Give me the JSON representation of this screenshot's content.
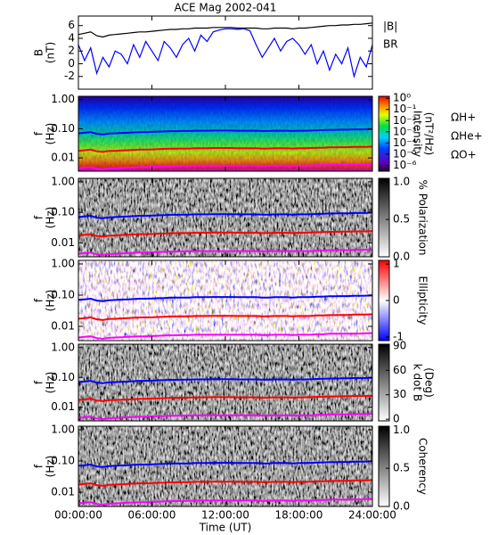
{
  "chart_data": [
    {
      "type": "line",
      "title": "ACE Mag 2002-041",
      "ylabel": [
        "B",
        "(nT)"
      ],
      "x": [
        0,
        0.5,
        1,
        1.5,
        2,
        2.5,
        3,
        3.5,
        4,
        4.5,
        5,
        5.5,
        6,
        6.5,
        7,
        7.5,
        8,
        8.5,
        9,
        9.5,
        10,
        10.5,
        11,
        11.5,
        12,
        12.5,
        13,
        13.5,
        14,
        14.5,
        15,
        15.5,
        16,
        16.5,
        17,
        17.5,
        18,
        18.5,
        19,
        19.5,
        20,
        20.5,
        21,
        21.5,
        22,
        22.5,
        23,
        23.5,
        24
      ],
      "ylim": [
        -4,
        7.5
      ],
      "yticks": [
        -2,
        0,
        2,
        4,
        6
      ],
      "series": [
        {
          "name": "|B|",
          "color": "#000000",
          "values": [
            4.6,
            4.8,
            5.0,
            4.4,
            4.2,
            4.5,
            4.6,
            4.7,
            4.8,
            4.9,
            5.0,
            5.0,
            5.1,
            5.2,
            5.3,
            5.4,
            5.4,
            5.5,
            5.5,
            5.6,
            5.6,
            5.6,
            5.7,
            5.7,
            5.7,
            5.7,
            5.6,
            5.6,
            5.6,
            5.6,
            5.5,
            5.5,
            5.6,
            5.6,
            5.6,
            5.5,
            5.6,
            5.6,
            5.7,
            5.8,
            5.9,
            6.0,
            6.0,
            6.1,
            6.1,
            6.2,
            6.2,
            6.3,
            6.4
          ]
        },
        {
          "name": "BR",
          "color": "#0000ff",
          "values": [
            3.0,
            0.5,
            2.5,
            -1.5,
            1.0,
            -0.5,
            2.0,
            1.5,
            0.0,
            3.0,
            1.0,
            3.5,
            2.0,
            0.5,
            3.5,
            2.5,
            1.0,
            3.0,
            4.0,
            2.0,
            4.5,
            3.5,
            5.0,
            5.3,
            5.5,
            5.5,
            5.4,
            5.5,
            5.2,
            3.0,
            1.0,
            2.5,
            4.0,
            2.0,
            3.5,
            4.0,
            3.0,
            1.5,
            3.0,
            0.0,
            2.0,
            -1.0,
            1.5,
            0.0,
            2.5,
            -2.0,
            1.0,
            -0.5,
            3.0
          ]
        }
      ]
    },
    {
      "type": "spectrogram",
      "ylabel": [
        "f",
        "(Hz)"
      ],
      "log_y": true,
      "ylim": [
        0.0035,
        1.3
      ],
      "yticks": [
        0.01,
        {
          "value": 0.1,
          "label": "0.10"
        },
        {
          "value": 1,
          "label": "1.00"
        }
      ],
      "colorbar": {
        "label": [
          "Intensity",
          "(nT²/Hz)"
        ],
        "colormap": "rainbow",
        "log": true,
        "lim": [
          3e-07,
          1.5
        ],
        "ticks": [
          {
            "value": 1,
            "label": "10⁰"
          },
          {
            "value": 0.1,
            "label": "10⁻¹"
          },
          {
            "value": 0.01,
            "label": "10⁻²"
          },
          {
            "value": 0.001,
            "label": "10⁻³"
          },
          {
            "value": 0.0001,
            "label": "10⁻⁴"
          },
          {
            "value": 1e-05,
            "label": "10⁻⁵"
          },
          {
            "value": 1e-06,
            "label": "10⁻⁶"
          }
        ]
      },
      "x": [
        0,
        0.5,
        1,
        1.5,
        2,
        2.5,
        3,
        3.5,
        4,
        4.5,
        5,
        5.5,
        6,
        6.5,
        7,
        7.5,
        8,
        8.5,
        9,
        9.5,
        10,
        10.5,
        11,
        11.5,
        12,
        12.5,
        13,
        13.5,
        14,
        14.5,
        15,
        15.5,
        16,
        16.5,
        17,
        17.5,
        18,
        18.5,
        19,
        19.5,
        20,
        20.5,
        21,
        21.5,
        22,
        22.5,
        23,
        23.5,
        24
      ],
      "series": [
        {
          "name": "ΩH+",
          "color": "#0000ff",
          "values": [
            0.07,
            0.073,
            0.077,
            0.067,
            0.064,
            0.069,
            0.07,
            0.072,
            0.073,
            0.075,
            0.077,
            0.077,
            0.078,
            0.08,
            0.081,
            0.083,
            0.083,
            0.084,
            0.084,
            0.086,
            0.086,
            0.086,
            0.087,
            0.087,
            0.087,
            0.087,
            0.086,
            0.086,
            0.086,
            0.086,
            0.084,
            0.084,
            0.086,
            0.086,
            0.086,
            0.084,
            0.086,
            0.086,
            0.087,
            0.089,
            0.09,
            0.092,
            0.092,
            0.093,
            0.093,
            0.095,
            0.095,
            0.096,
            0.098
          ]
        },
        {
          "name": "ΩHe+",
          "color": "#ff0000",
          "values": [
            0.0175,
            0.0183,
            0.0193,
            0.0168,
            0.016,
            0.0173,
            0.0175,
            0.018,
            0.0183,
            0.0188,
            0.0193,
            0.0193,
            0.0195,
            0.02,
            0.0203,
            0.0208,
            0.0208,
            0.021,
            0.021,
            0.0215,
            0.0215,
            0.0215,
            0.0218,
            0.0218,
            0.0218,
            0.0218,
            0.0215,
            0.0215,
            0.0215,
            0.0215,
            0.021,
            0.021,
            0.0215,
            0.0215,
            0.0215,
            0.021,
            0.0215,
            0.0215,
            0.0218,
            0.0223,
            0.0225,
            0.023,
            0.023,
            0.0233,
            0.0233,
            0.0238,
            0.0238,
            0.024,
            0.0245
          ]
        },
        {
          "name": "ΩO+",
          "color": "#ff00ff",
          "values": [
            0.0044,
            0.0046,
            0.0048,
            0.0042,
            0.004,
            0.0043,
            0.0044,
            0.0045,
            0.0046,
            0.0047,
            0.0048,
            0.0048,
            0.0049,
            0.005,
            0.0051,
            0.0052,
            0.0052,
            0.0053,
            0.0053,
            0.0054,
            0.0054,
            0.0054,
            0.0054,
            0.0054,
            0.0054,
            0.0054,
            0.0054,
            0.0054,
            0.0054,
            0.0054,
            0.0053,
            0.0053,
            0.0054,
            0.0054,
            0.0054,
            0.0053,
            0.0054,
            0.0054,
            0.0054,
            0.0056,
            0.0056,
            0.0058,
            0.0058,
            0.0058,
            0.0058,
            0.0059,
            0.0059,
            0.006,
            0.0061
          ]
        }
      ]
    },
    {
      "type": "spectrogram",
      "ylabel": [
        "f",
        "(Hz)"
      ],
      "log_y": true,
      "ylim": [
        0.0035,
        1.3
      ],
      "yticks": [
        0.01,
        {
          "value": 0.1,
          "label": "0.10"
        },
        {
          "value": 1,
          "label": "1.00"
        }
      ],
      "colorbar": {
        "label": [
          "% Polarization"
        ],
        "colormap": "gray",
        "lim": [
          0,
          1.05
        ],
        "ticks": [
          {
            "value": 0,
            "label": "0.0"
          },
          {
            "value": 0.5,
            "label": "0.5"
          },
          {
            "value": 1,
            "label": "1.0"
          }
        ]
      }
    },
    {
      "type": "spectrogram",
      "ylabel": [
        "f",
        "(Hz)"
      ],
      "log_y": true,
      "ylim": [
        0.0035,
        1.3
      ],
      "yticks": [
        0.01,
        {
          "value": 0.1,
          "label": "0.10"
        },
        {
          "value": 1,
          "label": "1.00"
        }
      ],
      "colorbar": {
        "label": [
          "Ellipticity"
        ],
        "colormap": "bwr",
        "lim": [
          -1.1,
          1.1
        ],
        "ticks": [
          -1,
          0,
          1
        ]
      }
    },
    {
      "type": "spectrogram",
      "ylabel": [
        "f",
        "(Hz)"
      ],
      "log_y": true,
      "ylim": [
        0.0035,
        1.3
      ],
      "yticks": [
        0.01,
        {
          "value": 0.1,
          "label": "0.10"
        },
        {
          "value": 1,
          "label": "1.00"
        }
      ],
      "colorbar": {
        "label": [
          "k dot B",
          "(Deg)"
        ],
        "colormap": "gray",
        "lim": [
          -2,
          92
        ],
        "ticks": [
          0,
          30,
          60,
          90
        ]
      }
    },
    {
      "type": "spectrogram",
      "ylabel": [
        "f",
        "(Hz)"
      ],
      "log_y": true,
      "ylim": [
        0.0035,
        1.3
      ],
      "yticks": [
        0.01,
        {
          "value": 0.1,
          "label": "0.10"
        },
        {
          "value": 1,
          "label": "1.00"
        }
      ],
      "colorbar": {
        "label": [
          "Coherency"
        ],
        "colormap": "gray",
        "lim": [
          0,
          1.05
        ],
        "ticks": [
          {
            "value": 0,
            "label": "0.0"
          },
          {
            "value": 0.5,
            "label": "0.5"
          },
          {
            "value": 1,
            "label": "1.0"
          }
        ]
      },
      "xlim": [
        0,
        24
      ],
      "xlabel": "Time (UT)",
      "xticks": [
        {
          "value": 0,
          "label": "00:00:00"
        },
        {
          "value": 6,
          "label": "06:00:00"
        },
        {
          "value": 12,
          "label": "12:00:00"
        },
        {
          "value": 18,
          "label": "18:00:00"
        },
        {
          "value": 24,
          "label": "24:00:00"
        }
      ]
    }
  ]
}
